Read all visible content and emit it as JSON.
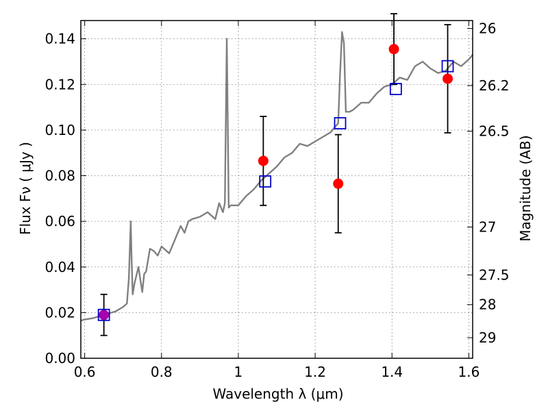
{
  "chart_data": {
    "type": "scatter",
    "title": "",
    "xlabel": "Wavelength  λ (μm)",
    "ylabel": "Flux  Fν  ( μJy )",
    "y2label": "Magnitude (AB)",
    "xlim": [
      0.59,
      1.61
    ],
    "ylim": [
      0.0,
      0.148
    ],
    "xticks": [
      0.6,
      0.8,
      1.0,
      1.2,
      1.4,
      1.6
    ],
    "xtick_labels": [
      "0.6",
      "0.8",
      "1",
      "1.2",
      "1.4",
      "1.6"
    ],
    "yticks": [
      0.0,
      0.02,
      0.04,
      0.06,
      0.08,
      0.1,
      0.12,
      0.14
    ],
    "ytick_labels": [
      "0.00",
      "0.02",
      "0.04",
      "0.06",
      "0.08",
      "0.10",
      "0.12",
      "0.14"
    ],
    "y2ticks": [
      {
        "flux": 0.1445,
        "label": "26"
      },
      {
        "flux": 0.1195,
        "label": "26.2"
      },
      {
        "flux": 0.0995,
        "label": "26.5"
      },
      {
        "flux": 0.0575,
        "label": "27"
      },
      {
        "flux": 0.0365,
        "label": "27.5"
      },
      {
        "flux": 0.0235,
        "label": "28"
      },
      {
        "flux": 0.009,
        "label": "29"
      }
    ],
    "grid": true,
    "colors": {
      "spectrum": "#808080",
      "observed": "#ff0000",
      "model": "#0000cc",
      "errorbar": "#000000",
      "overlap": "#aa00aa"
    },
    "series": [
      {
        "kind": "line",
        "x": [
          0.59,
          0.6,
          0.62,
          0.64,
          0.66,
          0.68,
          0.7,
          0.71,
          0.715,
          0.72,
          0.722,
          0.725,
          0.73,
          0.74,
          0.75,
          0.755,
          0.76,
          0.77,
          0.78,
          0.79,
          0.8,
          0.82,
          0.84,
          0.85,
          0.86,
          0.87,
          0.88,
          0.9,
          0.92,
          0.94,
          0.95,
          0.96,
          0.965,
          0.97,
          0.975,
          0.98,
          1.0,
          1.02,
          1.04,
          1.06,
          1.08,
          1.1,
          1.12,
          1.14,
          1.16,
          1.18,
          1.2,
          1.22,
          1.24,
          1.26,
          1.265,
          1.27,
          1.275,
          1.28,
          1.29,
          1.3,
          1.32,
          1.34,
          1.36,
          1.38,
          1.4,
          1.42,
          1.44,
          1.46,
          1.48,
          1.5,
          1.52,
          1.54,
          1.56,
          1.58,
          1.6,
          1.61
        ],
        "y": [
          0.0165,
          0.017,
          0.0175,
          0.0185,
          0.0195,
          0.0205,
          0.0225,
          0.024,
          0.035,
          0.06,
          0.045,
          0.028,
          0.033,
          0.04,
          0.029,
          0.037,
          0.038,
          0.048,
          0.047,
          0.045,
          0.049,
          0.046,
          0.054,
          0.058,
          0.055,
          0.06,
          0.061,
          0.062,
          0.064,
          0.061,
          0.068,
          0.064,
          0.068,
          0.14,
          0.066,
          0.067,
          0.067,
          0.071,
          0.074,
          0.078,
          0.081,
          0.084,
          0.088,
          0.09,
          0.094,
          0.093,
          0.095,
          0.097,
          0.099,
          0.103,
          0.125,
          0.143,
          0.138,
          0.108,
          0.108,
          0.109,
          0.112,
          0.112,
          0.116,
          0.119,
          0.12,
          0.123,
          0.122,
          0.128,
          0.13,
          0.127,
          0.125,
          0.126,
          0.13,
          0.128,
          0.131,
          0.133
        ]
      },
      {
        "kind": "observed-points",
        "x": [
          0.65,
          1.065,
          1.26,
          1.405,
          1.545
        ],
        "y": [
          0.019,
          0.0865,
          0.0765,
          0.1355,
          0.1225
        ],
        "yerr": [
          0.009,
          0.0195,
          0.0215,
          0.0155,
          0.0237
        ]
      },
      {
        "kind": "model-points",
        "x": [
          0.65,
          1.07,
          1.265,
          1.41,
          1.545
        ],
        "y": [
          0.019,
          0.0775,
          0.103,
          0.118,
          0.128
        ]
      }
    ]
  }
}
